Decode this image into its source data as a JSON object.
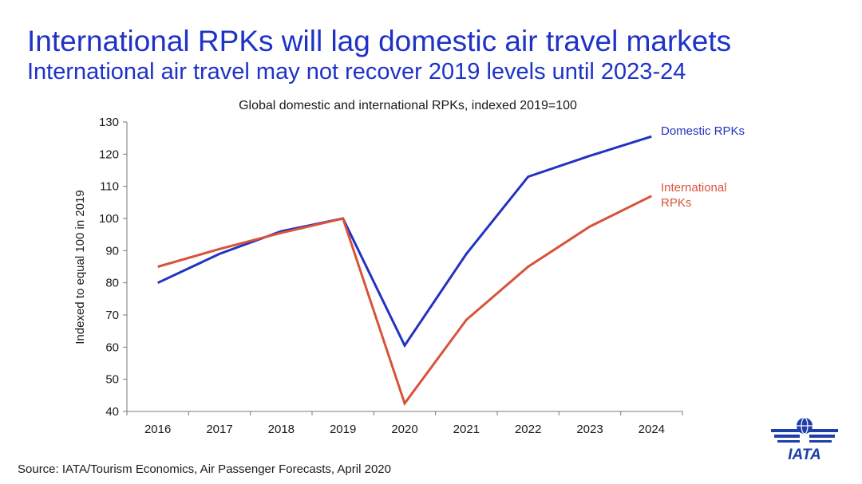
{
  "slide": {
    "title": "International RPKs will lag domestic air travel markets",
    "subtitle": "International air travel may not recover 2019 levels until 2023-24",
    "source": "Source: IATA/Tourism Economics, Air Passenger Forecasts, April 2020",
    "logo_text": "IATA"
  },
  "colors": {
    "title": "#1e32c8",
    "domestic": "#2233c0",
    "international": "#d9533b",
    "logo": "#1f3fa8"
  },
  "chart_data": {
    "type": "line",
    "title": "Global domestic and international RPKs, indexed 2019=100",
    "xlabel": "",
    "ylabel": "Indexed to equal 100 in 2019",
    "categories": [
      "2016",
      "2017",
      "2018",
      "2019",
      "2020",
      "2021",
      "2022",
      "2023",
      "2024"
    ],
    "ylim": [
      40,
      130
    ],
    "yticks": [
      40,
      50,
      60,
      70,
      80,
      90,
      100,
      110,
      120,
      130
    ],
    "series": [
      {
        "name": "Domestic RPKs",
        "label_lines": [
          "Domestic RPKs"
        ],
        "color": "#2233c0",
        "values": [
          80,
          89,
          96,
          100,
          60.5,
          89,
          113,
          119.5,
          125.5
        ]
      },
      {
        "name": "International RPKs",
        "label_lines": [
          "International",
          "RPKs"
        ],
        "color": "#d9533b",
        "values": [
          85,
          90.5,
          95.5,
          100,
          42.5,
          68.5,
          85,
          97.5,
          107
        ]
      }
    ]
  }
}
